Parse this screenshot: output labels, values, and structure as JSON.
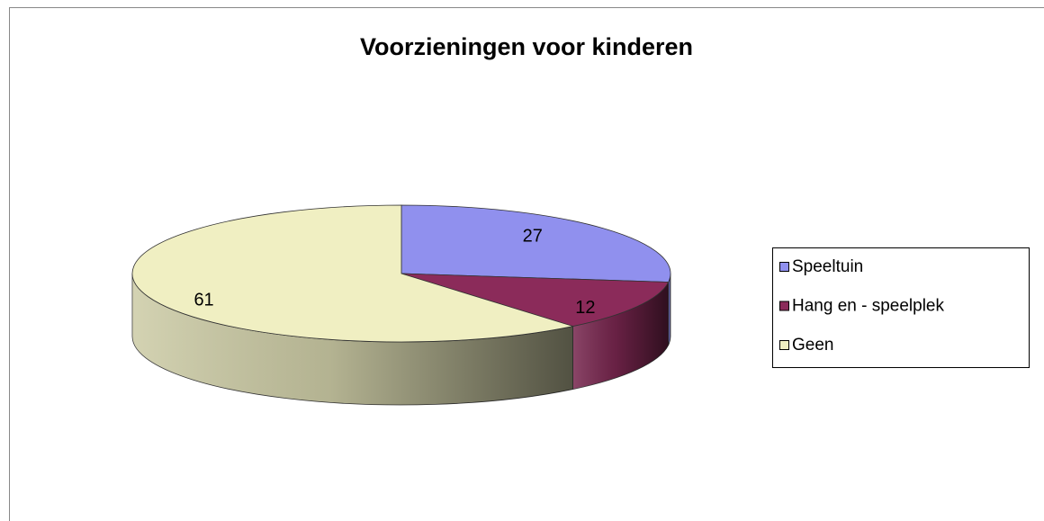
{
  "chart_data": {
    "type": "pie3d",
    "title": "Voorzieningen voor kinderen",
    "categories": [
      "Speeltuin",
      "Hang en - speelplek",
      "Geen"
    ],
    "values": [
      27,
      12,
      61
    ],
    "colors": [
      "#9090ee",
      "#8b2b5a",
      "#f0efc2"
    ],
    "legend": "right"
  }
}
